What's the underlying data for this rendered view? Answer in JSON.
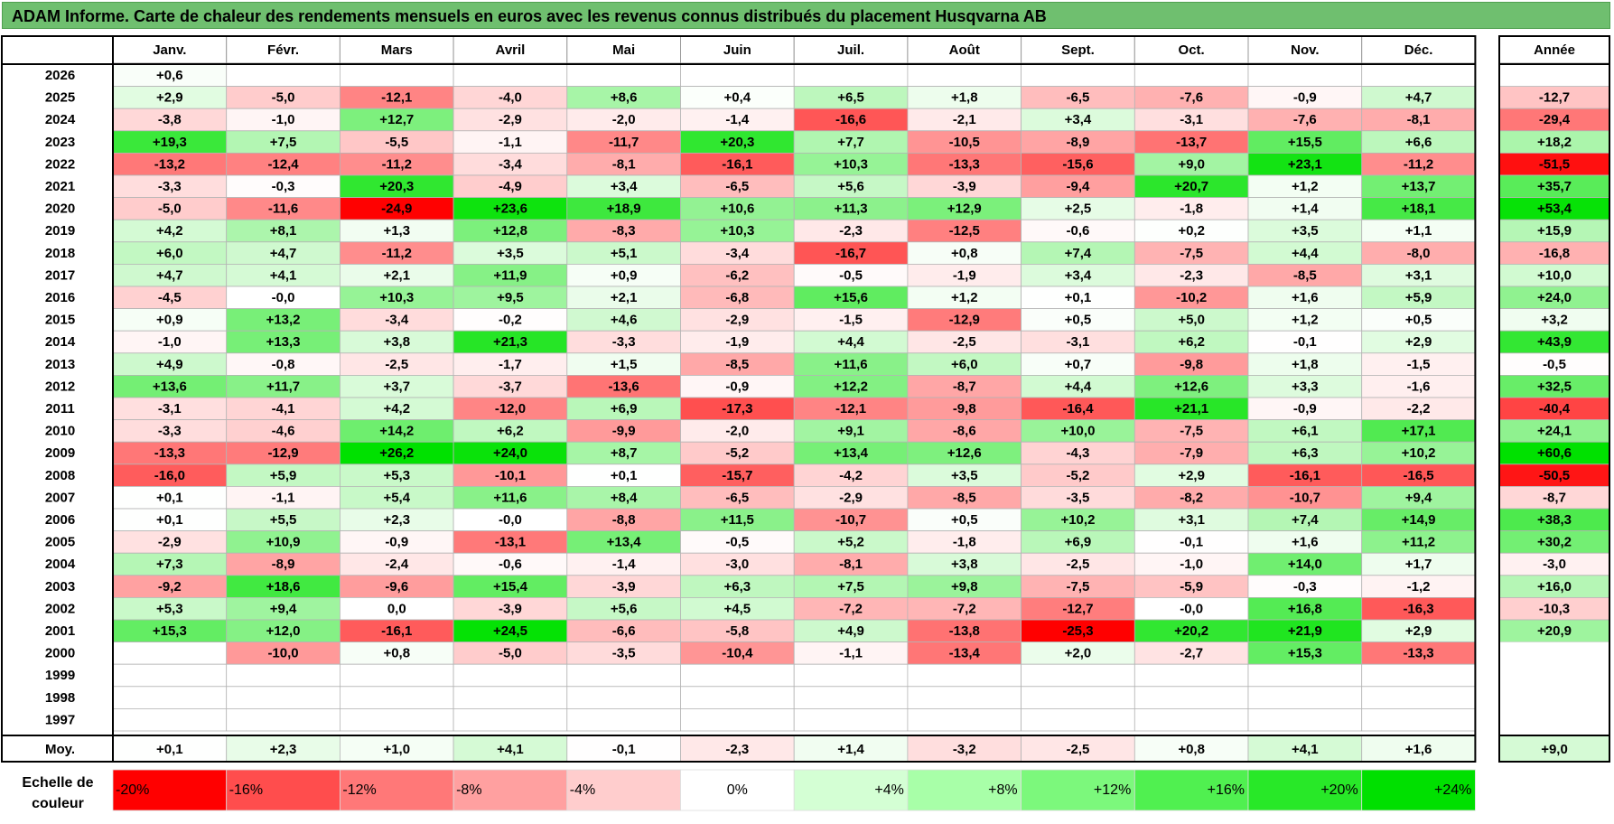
{
  "title": "ADAM Informe. Carte de chaleur des rendements mensuels en euros avec les revenus connus distribués du placement Husqvarna AB",
  "chart_data": {
    "type": "heatmap",
    "months": [
      "Janv.",
      "Févr.",
      "Mars",
      "Avril",
      "Mai",
      "Juin",
      "Juil.",
      "Août",
      "Sept.",
      "Oct.",
      "Nov.",
      "Déc."
    ],
    "year_header": "Année",
    "avg_label": "Moy.",
    "rows": [
      {
        "year": "2026",
        "months": [
          "+0,6",
          "",
          "",
          "",
          "",
          "",
          "",
          "",
          "",
          "",
          "",
          ""
        ],
        "annual": ""
      },
      {
        "year": "2025",
        "months": [
          "+2,9",
          "-5,0",
          "-12,1",
          "-4,0",
          "+8,6",
          "+0,4",
          "+6,5",
          "+1,8",
          "-6,5",
          "-7,6",
          "-0,9",
          "+4,7"
        ],
        "annual": "-12,7"
      },
      {
        "year": "2024",
        "months": [
          "-3,8",
          "-1,0",
          "+12,7",
          "-2,9",
          "-2,0",
          "-1,4",
          "-16,6",
          "-2,1",
          "+3,4",
          "-3,1",
          "-7,6",
          "-8,1"
        ],
        "annual": "-29,4"
      },
      {
        "year": "2023",
        "months": [
          "+19,3",
          "+7,5",
          "-5,5",
          "-1,1",
          "-11,7",
          "+20,3",
          "+7,7",
          "-10,5",
          "-8,9",
          "-13,7",
          "+15,5",
          "+6,6"
        ],
        "annual": "+18,2"
      },
      {
        "year": "2022",
        "months": [
          "-13,2",
          "-12,4",
          "-11,2",
          "-3,4",
          "-8,1",
          "-16,1",
          "+10,3",
          "-13,3",
          "-15,6",
          "+9,0",
          "+23,1",
          "-11,2"
        ],
        "annual": "-51,5"
      },
      {
        "year": "2021",
        "months": [
          "-3,3",
          "-0,3",
          "+20,3",
          "-4,9",
          "+3,4",
          "-6,5",
          "+5,6",
          "-3,9",
          "-9,4",
          "+20,7",
          "+1,2",
          "+13,7"
        ],
        "annual": "+35,7"
      },
      {
        "year": "2020",
        "months": [
          "-5,0",
          "-11,6",
          "-24,9",
          "+23,6",
          "+18,9",
          "+10,6",
          "+11,3",
          "+12,9",
          "+2,5",
          "-1,8",
          "+1,4",
          "+18,1"
        ],
        "annual": "+53,4"
      },
      {
        "year": "2019",
        "months": [
          "+4,2",
          "+8,1",
          "+1,3",
          "+12,8",
          "-8,3",
          "+10,3",
          "-2,3",
          "-12,5",
          "-0,6",
          "+0,2",
          "+3,5",
          "+1,1"
        ],
        "annual": "+15,9"
      },
      {
        "year": "2018",
        "months": [
          "+6,0",
          "+4,7",
          "-11,2",
          "+3,5",
          "+5,1",
          "-3,4",
          "-16,7",
          "+0,8",
          "+7,4",
          "-7,5",
          "+4,4",
          "-8,0"
        ],
        "annual": "-16,8"
      },
      {
        "year": "2017",
        "months": [
          "+4,7",
          "+4,1",
          "+2,1",
          "+11,9",
          "+0,9",
          "-6,2",
          "-0,5",
          "-1,9",
          "+3,4",
          "-2,3",
          "-8,5",
          "+3,1"
        ],
        "annual": "+10,0"
      },
      {
        "year": "2016",
        "months": [
          "-4,5",
          "-0,0",
          "+10,3",
          "+9,5",
          "+2,1",
          "-6,8",
          "+15,6",
          "+1,2",
          "+0,1",
          "-10,2",
          "+1,6",
          "+5,9"
        ],
        "annual": "+24,0"
      },
      {
        "year": "2015",
        "months": [
          "+0,9",
          "+13,2",
          "-3,4",
          "-0,2",
          "+4,6",
          "-2,9",
          "-1,5",
          "-12,9",
          "+0,5",
          "+5,0",
          "+1,2",
          "+0,5"
        ],
        "annual": "+3,2"
      },
      {
        "year": "2014",
        "months": [
          "-1,0",
          "+13,3",
          "+3,8",
          "+21,3",
          "-3,3",
          "-1,9",
          "+4,4",
          "-2,5",
          "-3,1",
          "+6,2",
          "-0,1",
          "+2,9"
        ],
        "annual": "+43,9"
      },
      {
        "year": "2013",
        "months": [
          "+4,9",
          "-0,8",
          "-2,5",
          "-1,7",
          "+1,5",
          "-8,5",
          "+11,6",
          "+6,0",
          "+0,7",
          "-9,8",
          "+1,8",
          "-1,5"
        ],
        "annual": "-0,5"
      },
      {
        "year": "2012",
        "months": [
          "+13,6",
          "+11,7",
          "+3,7",
          "-3,7",
          "-13,6",
          "-0,9",
          "+12,2",
          "-8,7",
          "+4,4",
          "+12,6",
          "+3,3",
          "-1,6"
        ],
        "annual": "+32,5"
      },
      {
        "year": "2011",
        "months": [
          "-3,1",
          "-4,1",
          "+4,2",
          "-12,0",
          "+6,9",
          "-17,3",
          "-12,1",
          "-9,8",
          "-16,4",
          "+21,1",
          "-0,9",
          "-2,2"
        ],
        "annual": "-40,4"
      },
      {
        "year": "2010",
        "months": [
          "-3,3",
          "-4,6",
          "+14,2",
          "+6,2",
          "-9,9",
          "-2,0",
          "+9,1",
          "-8,6",
          "+10,0",
          "-7,5",
          "+6,1",
          "+17,1"
        ],
        "annual": "+24,1"
      },
      {
        "year": "2009",
        "months": [
          "-13,3",
          "-12,9",
          "+26,2",
          "+24,0",
          "+8,7",
          "-5,2",
          "+13,4",
          "+12,6",
          "-4,3",
          "-7,9",
          "+6,3",
          "+10,2"
        ],
        "annual": "+60,6"
      },
      {
        "year": "2008",
        "months": [
          "-16,0",
          "+5,9",
          "+5,3",
          "-10,1",
          "+0,1",
          "-15,7",
          "-4,2",
          "+3,5",
          "-5,2",
          "+2,9",
          "-16,1",
          "-16,5"
        ],
        "annual": "-50,5"
      },
      {
        "year": "2007",
        "months": [
          "+0,1",
          "-1,1",
          "+5,4",
          "+11,6",
          "+8,4",
          "-6,5",
          "-2,9",
          "-8,5",
          "-3,5",
          "-8,2",
          "-10,7",
          "+9,4"
        ],
        "annual": "-8,7"
      },
      {
        "year": "2006",
        "months": [
          "+0,1",
          "+5,5",
          "+2,3",
          "-0,0",
          "-8,8",
          "+11,5",
          "-10,7",
          "+0,5",
          "+10,2",
          "+3,1",
          "+7,4",
          "+14,9"
        ],
        "annual": "+38,3"
      },
      {
        "year": "2005",
        "months": [
          "-2,9",
          "+10,9",
          "-0,9",
          "-13,1",
          "+13,4",
          "-0,5",
          "+5,2",
          "-1,8",
          "+6,9",
          "-0,1",
          "+1,6",
          "+11,2"
        ],
        "annual": "+30,2"
      },
      {
        "year": "2004",
        "months": [
          "+7,3",
          "-8,9",
          "-2,4",
          "-0,6",
          "-1,4",
          "-3,0",
          "-8,1",
          "+3,8",
          "-2,5",
          "-1,0",
          "+14,0",
          "+1,7"
        ],
        "annual": "-3,0"
      },
      {
        "year": "2003",
        "months": [
          "-9,2",
          "+18,6",
          "-9,6",
          "+15,4",
          "-3,9",
          "+6,3",
          "+7,5",
          "+9,8",
          "-7,5",
          "-5,9",
          "-0,3",
          "-1,2"
        ],
        "annual": "+16,0"
      },
      {
        "year": "2002",
        "months": [
          "+5,3",
          "+9,4",
          "0,0",
          "-3,9",
          "+5,6",
          "+4,5",
          "-7,2",
          "-7,2",
          "-12,7",
          "-0,0",
          "+16,8",
          "-16,3"
        ],
        "annual": "-10,3"
      },
      {
        "year": "2001",
        "months": [
          "+15,3",
          "+12,0",
          "-16,1",
          "+24,5",
          "-6,6",
          "-5,8",
          "+4,9",
          "-13,8",
          "-25,3",
          "+20,2",
          "+21,9",
          "+2,9"
        ],
        "annual": "+20,9"
      },
      {
        "year": "2000",
        "months": [
          "",
          "-10,0",
          "+0,8",
          "-5,0",
          "-3,5",
          "-10,4",
          "-1,1",
          "-13,4",
          "+2,0",
          "-2,7",
          "+15,3",
          "-13,3"
        ],
        "annual": ""
      },
      {
        "year": "1999",
        "months": [
          "",
          "",
          "",
          "",
          "",
          "",
          "",
          "",
          "",
          "",
          "",
          ""
        ],
        "annual": ""
      },
      {
        "year": "1998",
        "months": [
          "",
          "",
          "",
          "",
          "",
          "",
          "",
          "",
          "",
          "",
          "",
          ""
        ],
        "annual": ""
      },
      {
        "year": "1997",
        "months": [
          "",
          "",
          "",
          "",
          "",
          "",
          "",
          "",
          "",
          "",
          "",
          ""
        ],
        "annual": ""
      }
    ],
    "averages": [
      "+0,1",
      "+2,3",
      "+1,0",
      "+4,1",
      "-0,1",
      "-2,3",
      "+1,4",
      "-3,2",
      "-2,5",
      "+0,8",
      "+4,1",
      "+1,6"
    ],
    "average_annual": "+9,0",
    "scale_label": "Echelle de couleur",
    "scale": [
      "-20%",
      "-16%",
      "-12%",
      "-8%",
      "-4%",
      "0%",
      "+4%",
      "+8%",
      "+12%",
      "+16%",
      "+20%",
      "+24%"
    ],
    "scale_colors": [
      "#ff0000",
      "#ff4d4d",
      "#ff7878",
      "#ffa0a0",
      "#ffcdcd",
      "#ffffff",
      "#d4ffd4",
      "#a8ffa8",
      "#7cf87c",
      "#50f050",
      "#28e828",
      "#00e000"
    ]
  }
}
